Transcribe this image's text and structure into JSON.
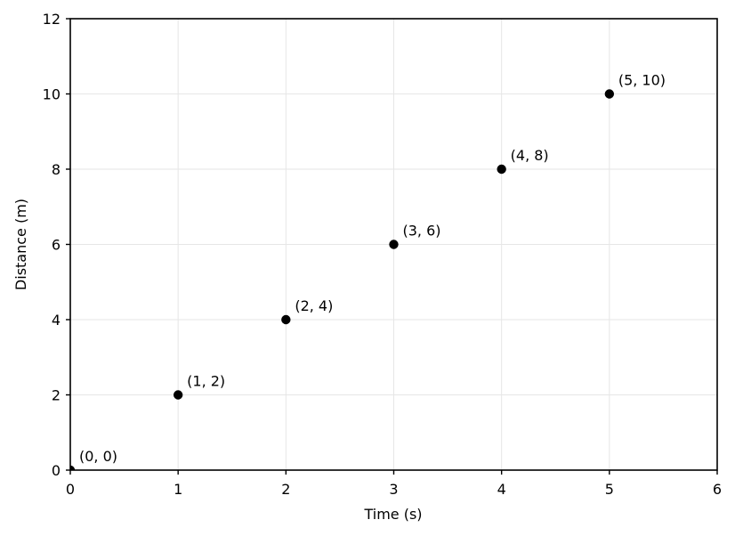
{
  "chart_data": {
    "type": "scatter",
    "title": "",
    "xlabel": "Time (s)",
    "ylabel": "Distance (m)",
    "xlim": [
      0,
      6
    ],
    "ylim": [
      0,
      12
    ],
    "xticks": [
      "0",
      "1",
      "2",
      "3",
      "4",
      "5",
      "6"
    ],
    "yticks": [
      "0",
      "2",
      "4",
      "6",
      "8",
      "10",
      "12"
    ],
    "grid": true,
    "marker_color": "#000000",
    "points": [
      {
        "x": 0,
        "y": 0,
        "label": "(0, 0)"
      },
      {
        "x": 1,
        "y": 2,
        "label": "(1, 2)"
      },
      {
        "x": 2,
        "y": 4,
        "label": "(2, 4)"
      },
      {
        "x": 3,
        "y": 6,
        "label": "(3, 6)"
      },
      {
        "x": 4,
        "y": 8,
        "label": "(4, 8)"
      },
      {
        "x": 5,
        "y": 10,
        "label": "(5, 10)"
      }
    ]
  }
}
